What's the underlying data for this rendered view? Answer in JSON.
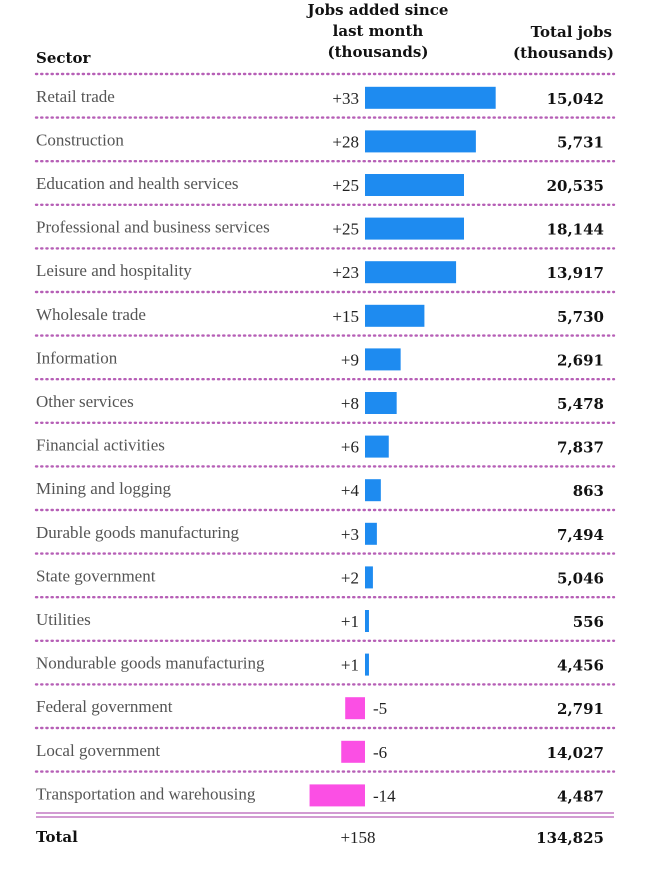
{
  "colors": {
    "positive": "#1e8bf0",
    "negative": "#fb4fe4",
    "divider": "#b65fb6"
  },
  "chart_data": {
    "type": "table",
    "columns": {
      "sector": "Sector",
      "change": [
        "Jobs added since",
        "last month",
        "(thousands)"
      ],
      "total": [
        "Total jobs",
        "(thousands)"
      ]
    },
    "rows": [
      {
        "sector": "Retail trade",
        "change": 33,
        "change_label": "+33",
        "total": "15,042"
      },
      {
        "sector": "Construction",
        "change": 28,
        "change_label": "+28",
        "total": "5,731"
      },
      {
        "sector": "Education and health services",
        "change": 25,
        "change_label": "+25",
        "total": "20,535"
      },
      {
        "sector": "Professional and business services",
        "change": 25,
        "change_label": "+25",
        "total": "18,144"
      },
      {
        "sector": "Leisure and hospitality",
        "change": 23,
        "change_label": "+23",
        "total": "13,917"
      },
      {
        "sector": "Wholesale trade",
        "change": 15,
        "change_label": "+15",
        "total": "5,730"
      },
      {
        "sector": "Information",
        "change": 9,
        "change_label": "+9",
        "total": "2,691"
      },
      {
        "sector": "Other services",
        "change": 8,
        "change_label": "+8",
        "total": "5,478"
      },
      {
        "sector": "Financial activities",
        "change": 6,
        "change_label": "+6",
        "total": "7,837"
      },
      {
        "sector": "Mining and logging",
        "change": 4,
        "change_label": "+4",
        "total": "863"
      },
      {
        "sector": "Durable goods manufacturing",
        "change": 3,
        "change_label": "+3",
        "total": "7,494"
      },
      {
        "sector": "State government",
        "change": 2,
        "change_label": "+2",
        "total": "5,046"
      },
      {
        "sector": "Utilities",
        "change": 1,
        "change_label": "+1",
        "total": "556"
      },
      {
        "sector": "Nondurable goods manufacturing",
        "change": 1,
        "change_label": "+1",
        "total": "4,456"
      },
      {
        "sector": "Federal government",
        "change": -5,
        "change_label": "-5",
        "total": "2,791"
      },
      {
        "sector": "Local government",
        "change": -6,
        "change_label": "-6",
        "total": "14,027"
      },
      {
        "sector": "Transportation and warehousing",
        "change": -14,
        "change_label": "-14",
        "total": "4,487"
      }
    ],
    "summary": {
      "label": "Total",
      "change_label": "+158",
      "total": "134,825"
    }
  }
}
